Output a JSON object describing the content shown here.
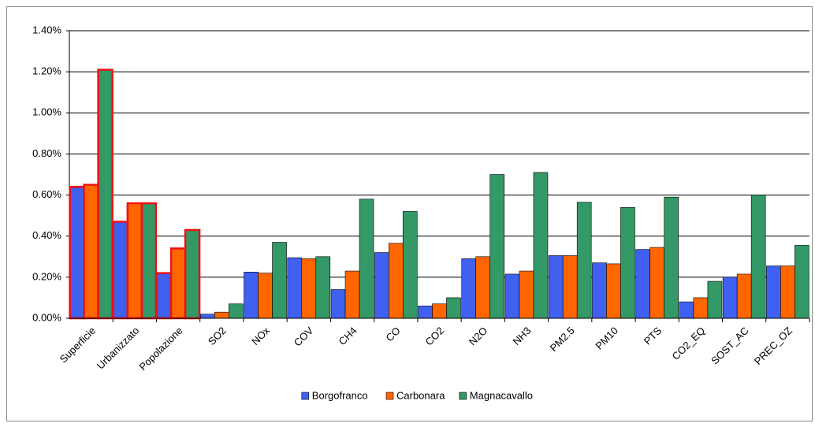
{
  "chart_data": {
    "type": "bar",
    "categories": [
      "Superficie",
      "Urbanizzato",
      "Popolazione",
      "SO2",
      "NOx",
      "COV",
      "CH4",
      "CO",
      "CO2",
      "N2O",
      "NH3",
      "PM2.5",
      "PM10",
      "PTS",
      "CO2_EQ",
      "SOST_AC",
      "PREC_OZ"
    ],
    "series": [
      {
        "name": "Borgofranco",
        "color": "#4060f0",
        "values": [
          0.64,
          0.47,
          0.22,
          0.02,
          0.225,
          0.295,
          0.14,
          0.32,
          0.06,
          0.29,
          0.215,
          0.305,
          0.27,
          0.335,
          0.08,
          0.2,
          0.255
        ]
      },
      {
        "name": "Carbonara",
        "color": "#ff6600",
        "values": [
          0.65,
          0.56,
          0.34,
          0.03,
          0.22,
          0.29,
          0.23,
          0.365,
          0.07,
          0.3,
          0.23,
          0.305,
          0.265,
          0.345,
          0.1,
          0.215,
          0.255
        ]
      },
      {
        "name": "Magnacavallo",
        "color": "#339966",
        "values": [
          1.21,
          0.56,
          0.43,
          0.07,
          0.37,
          0.3,
          0.58,
          0.52,
          0.1,
          0.7,
          0.71,
          0.565,
          0.54,
          0.59,
          0.18,
          0.6,
          0.355
        ]
      }
    ],
    "ylim": [
      0,
      1.4
    ],
    "yticks": [
      {
        "value": 0,
        "label": "0.00%"
      },
      {
        "value": 0.2,
        "label": "0.20%"
      },
      {
        "value": 0.4,
        "label": "0.40%"
      },
      {
        "value": 0.6,
        "label": "0.60%"
      },
      {
        "value": 0.8,
        "label": "0.80%"
      },
      {
        "value": 1.0,
        "label": "1.00%"
      },
      {
        "value": 1.2,
        "label": "1.20%"
      },
      {
        "value": 1.4,
        "label": "1.40%"
      }
    ],
    "grid": true,
    "legend": "bottom",
    "outlined_categories": [
      "Superficie",
      "Urbanizzato",
      "Popolazione"
    ],
    "outline_color": "#ee1111"
  }
}
